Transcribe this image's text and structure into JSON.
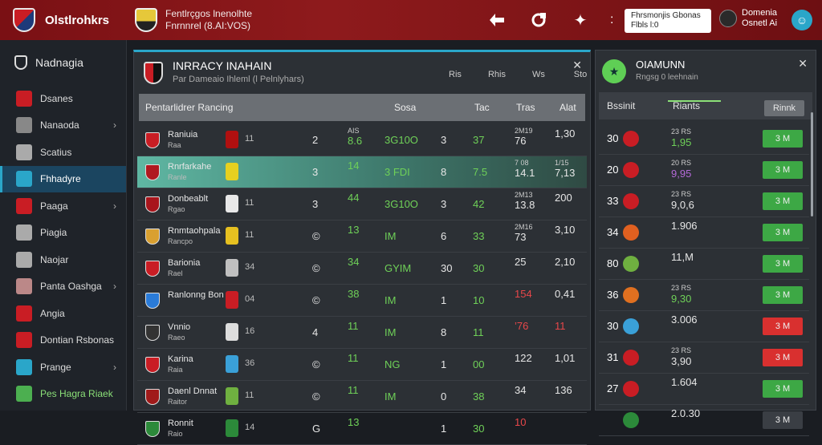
{
  "app": {
    "name": "Olstlrohkrs"
  },
  "club": {
    "line1": "Fentlrçgos lnenolhte",
    "line2": "Fnrnnrel (8.AI:VOS)"
  },
  "notice": {
    "line1": "Fhrsmonjis Gbonas",
    "line2": "Flbls l:0"
  },
  "profile": {
    "line1": "Domenia",
    "line2": "Osnetl Ai"
  },
  "help_icon": "person-icon",
  "sidebar": {
    "title": "Nadnagia",
    "items": [
      {
        "label": "Dsanes",
        "icon": "crest-icon",
        "chev": false
      },
      {
        "label": "Nanaoda",
        "icon": "tools-icon",
        "chev": true
      },
      {
        "label": "Scatius",
        "icon": "card-icon",
        "chev": false
      },
      {
        "label": "Fhhadyre",
        "icon": "info-icon",
        "chev": false
      },
      {
        "label": "Paaga",
        "icon": "flag-icon",
        "chev": true
      },
      {
        "label": "Piagia",
        "icon": "clock-icon",
        "chev": false
      },
      {
        "label": "Naojar",
        "icon": "gear-icon",
        "chev": false
      },
      {
        "label": "Panta Oashga",
        "icon": "tools-icon",
        "chev": true
      },
      {
        "label": "Angia",
        "icon": "crest-icon",
        "chev": false
      },
      {
        "label": "Dontian Rsbonas",
        "icon": "ball-icon",
        "chev": false
      },
      {
        "label": "Prange",
        "icon": "shield-icon",
        "chev": true
      },
      {
        "label": "Pes Hagra Riaek",
        "icon": "pitch-icon",
        "chev": false
      }
    ]
  },
  "main": {
    "title": "INRRACY INAHAIN",
    "subtitle": "Par Dameaio Ihleml (l Pelnlyhars)",
    "head_cols": [
      "Ris",
      "Rhis",
      "Ws",
      "Sto"
    ],
    "table_head": {
      "name": "Pentarlidrer Rancing",
      "c1": "Sosa",
      "c2": "Tac",
      "c3": "Tras",
      "c4": "Alat"
    },
    "rows": [
      {
        "name": "Raniuia",
        "sub": "Raa",
        "kit": "11",
        "a": "2",
        "b_top": "AIS",
        "b": "8.6",
        "c": "3G10O",
        "d": "3",
        "e": "37",
        "f_top": "2M19",
        "f": "76",
        "g": "1,30",
        "sel": false
      },
      {
        "name": "Rnrfarkahe",
        "sub": "Ranle",
        "kit": "",
        "a": "3",
        "b_top": "",
        "b": "14",
        "c": "3 FDI",
        "d": "8",
        "e": "7.5",
        "f_top": "7 08",
        "f": "14.1",
        "g_top": "1/15",
        "g": "7,13",
        "sel": true
      },
      {
        "name": "Donbeablt",
        "sub": "Rgao",
        "kit": "11",
        "a": "3",
        "b_top": "",
        "b": "44",
        "c": "3G10O",
        "d": "3",
        "e": "42",
        "f_top": "2M13",
        "f": "13.8",
        "g": "200",
        "sel": false
      },
      {
        "name": "Rnmtaohpala",
        "sub": "Rancpo",
        "kit": "11",
        "a": "©",
        "b_top": "",
        "b": "13",
        "c": "IM",
        "d": "6",
        "e": "33",
        "f_top": "2M16",
        "f": "73",
        "g": "3,10",
        "sel": false
      },
      {
        "name": "Barionia",
        "sub": "Rael",
        "kit": "34",
        "a": "©",
        "b_top": "",
        "b": "34",
        "c": "GYIM",
        "d": "30",
        "e": "30",
        "f_top": "",
        "f": "25",
        "g": "2,10",
        "sel": false
      },
      {
        "name": "Ranlonng Bon",
        "sub": "",
        "kit": "04",
        "a": "©",
        "b_top": "",
        "b": "38",
        "c": "IM",
        "d": "1",
        "e": "10",
        "f_top": "",
        "f": "154",
        "g": "0,41",
        "sel": false
      },
      {
        "name": "Vnnio",
        "sub": "Raeo",
        "kit": "16",
        "a": "4",
        "b_top": "",
        "b": "11",
        "c": "IM",
        "d": "8",
        "e": "11",
        "f_top": "",
        "f": "’76",
        "g": "11",
        "sel": false
      },
      {
        "name": "Karina",
        "sub": "Raia",
        "kit": "36",
        "a": "©",
        "b_top": "",
        "b": "11",
        "c": "NG",
        "d": "1",
        "e": "00",
        "f_top": "",
        "f": "122",
        "g": "1,01",
        "sel": false
      },
      {
        "name": "Daenl Dnnat",
        "sub": "Raitor",
        "kit": "11",
        "a": "©",
        "b_top": "",
        "b": "11",
        "c": "IM",
        "d": "0",
        "e": "38",
        "f_top": "",
        "f": "34",
        "g": "136",
        "sel": false
      },
      {
        "name": "Ronnit",
        "sub": "Raio",
        "kit": "14",
        "a": "G",
        "b_top": "",
        "b": "13",
        "c": "",
        "d": "1",
        "e": "30",
        "f_top": "",
        "f": "10",
        "g": "",
        "sel": false
      }
    ]
  },
  "right": {
    "title": "OIAMUNN",
    "subtitle": "Rngsg 0 leehnain",
    "tabs": [
      "Bssinit",
      "Riants"
    ],
    "btn_head": "Rinnk",
    "rows": [
      {
        "n": "30",
        "top": "23 RS",
        "v": "1,95",
        "btn": "3 M",
        "kind": "green",
        "vc": "g"
      },
      {
        "n": "20",
        "top": "20 RS",
        "v": "9,95",
        "btn": "3 M",
        "kind": "green",
        "vc": "p"
      },
      {
        "n": "33",
        "top": "23 RS",
        "v": "9,0,6",
        "btn": "3 M",
        "kind": "green",
        "vc": ""
      },
      {
        "n": "34",
        "top": "",
        "v": "1.906",
        "btn": "3 M",
        "kind": "green",
        "vc": ""
      },
      {
        "n": "80",
        "top": "",
        "v": "11,M",
        "btn": "3 M",
        "kind": "green",
        "vc": ""
      },
      {
        "n": "36",
        "top": "23 RS",
        "v": "9,30",
        "btn": "3 M",
        "kind": "green",
        "vc": "g"
      },
      {
        "n": "30",
        "top": "",
        "v": "3.006",
        "btn": "3 M",
        "kind": "red",
        "vc": ""
      },
      {
        "n": "31",
        "top": "23 RS",
        "v": "3,90",
        "btn": "3 M",
        "kind": "red",
        "vc": ""
      },
      {
        "n": "27",
        "top": "",
        "v": "1.604",
        "btn": "3 M",
        "kind": "green",
        "vc": ""
      },
      {
        "n": "",
        "top": "",
        "v": "2.0.30",
        "btn": "3 M",
        "kind": "grey",
        "vc": ""
      }
    ]
  }
}
